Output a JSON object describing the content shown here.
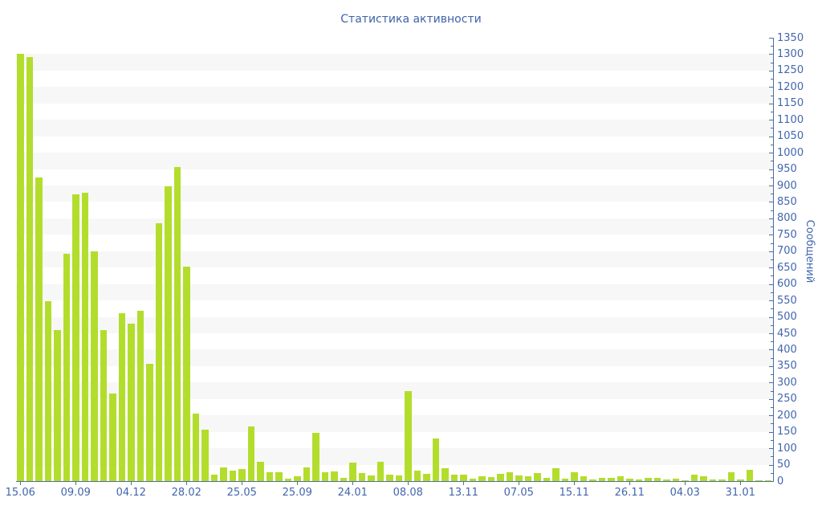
{
  "title": "Статистика активности",
  "colors": {
    "bar": "#b3dd2c",
    "axis": "#4e6d9e",
    "text": "#4266ae",
    "stripe": "#f7f7f8",
    "background": "#ffffff"
  },
  "chart_data": {
    "type": "bar",
    "title": "Статистика активности",
    "xlabel": "",
    "ylabel": "Сообщений",
    "ylim": [
      0,
      1350
    ],
    "ytick_labels": [
      0,
      50,
      100,
      150,
      200,
      250,
      300,
      350,
      400,
      450,
      500,
      550,
      600,
      650,
      700,
      750,
      800,
      850,
      900,
      950,
      1000,
      1050,
      1100,
      1150,
      1200,
      1250,
      1300,
      1350
    ],
    "ytick_minor_step": 25,
    "grid": "alternating horizontal stripes every 50 units, white / light-gray",
    "legend": "none",
    "y_axis_side": "right",
    "x_tick_every": 6,
    "x_tick_labels": [
      "15.06",
      "09.09",
      "04.12",
      "28.02",
      "25.05",
      "25.09",
      "24.01",
      "08.08",
      "13.11",
      "07.05",
      "15.11",
      "26.11",
      "04.03",
      "31.01"
    ],
    "values": [
      1302,
      1291,
      925,
      548,
      460,
      692,
      874,
      878,
      700,
      460,
      267,
      511,
      480,
      519,
      356,
      784,
      897,
      956,
      654,
      205,
      157,
      20,
      42,
      33,
      37,
      167,
      59,
      26,
      28,
      7,
      14,
      42,
      146,
      26,
      30,
      11,
      56,
      24,
      18,
      60,
      20,
      18,
      275,
      32,
      22,
      130,
      40,
      20,
      20,
      7,
      15,
      12,
      22,
      26,
      18,
      14,
      24,
      10,
      40,
      7,
      26,
      15,
      6,
      10,
      10,
      14,
      7,
      6,
      10,
      11,
      6,
      7,
      3,
      20,
      15,
      6,
      4,
      26,
      4,
      34,
      2,
      2
    ]
  }
}
